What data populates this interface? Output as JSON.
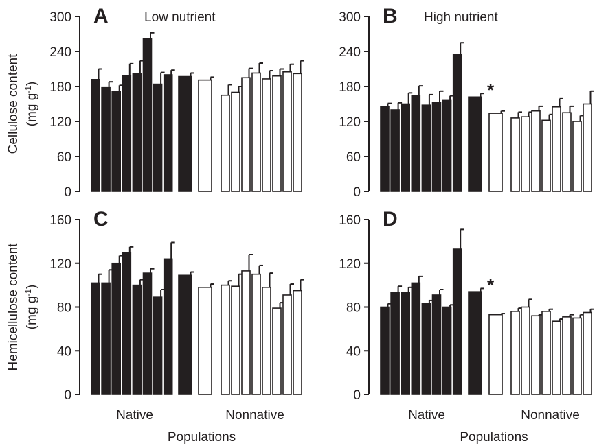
{
  "chart_data": [
    {
      "type": "bar",
      "panel": "A",
      "title": "Low nutrient",
      "ylabel": "Cellulose content",
      "yunit": "(mg g",
      "yunit_sup": "-1",
      "yunit_close": ")",
      "ylim": [
        0,
        300
      ],
      "yticks": [
        "0",
        "60",
        "120",
        "180",
        "240",
        "300"
      ],
      "groups": [
        "Native",
        "Nonnative"
      ],
      "native_values": [
        192,
        178,
        172,
        199,
        202,
        262,
        184,
        200
      ],
      "native_errors": [
        18,
        10,
        10,
        20,
        22,
        10,
        20,
        8
      ],
      "native_mean": 197,
      "native_mean_error": 6,
      "nonnative_mean": 191,
      "nonnative_mean_error": 5,
      "nonnative_values": [
        165,
        170,
        195,
        203,
        193,
        198,
        205,
        202
      ],
      "nonnative_errors": [
        18,
        10,
        16,
        17,
        14,
        12,
        13,
        22
      ],
      "significance": ""
    },
    {
      "type": "bar",
      "panel": "B",
      "title": "High nutrient",
      "ylabel": "",
      "ylim": [
        0,
        300
      ],
      "yticks": [
        "0",
        "60",
        "120",
        "180",
        "240",
        "300"
      ],
      "groups": [
        "Native",
        "Nonnative"
      ],
      "xlabel": "Populations",
      "native_values": [
        145,
        140,
        150,
        164,
        148,
        152,
        156,
        235
      ],
      "native_errors": [
        6,
        12,
        19,
        17,
        18,
        20,
        8,
        20
      ],
      "native_mean": 162,
      "native_mean_error": 6,
      "nonnative_mean": 134,
      "nonnative_mean_error": 4,
      "nonnative_values": [
        126,
        128,
        138,
        122,
        145,
        135,
        120,
        150
      ],
      "nonnative_errors": [
        10,
        8,
        8,
        10,
        14,
        11,
        10,
        22
      ],
      "significance": "*"
    },
    {
      "type": "bar",
      "panel": "C",
      "title": "",
      "ylabel": "Hemicellulose content",
      "yunit": "(mg g",
      "yunit_sup": "-1",
      "yunit_close": ")",
      "ylim": [
        0,
        160
      ],
      "yticks": [
        "0",
        "40",
        "80",
        "120",
        "160"
      ],
      "groups": [
        "Native",
        "Nonnative"
      ],
      "xlabel": "Populations",
      "native_values": [
        102,
        102,
        120,
        130,
        100,
        111,
        89,
        124
      ],
      "native_errors": [
        8,
        12,
        7,
        5,
        5,
        4,
        7,
        15
      ],
      "native_mean": 109,
      "native_mean_error": 3,
      "nonnative_mean": 98,
      "nonnative_mean_error": 3,
      "nonnative_values": [
        100,
        99,
        113,
        110,
        98,
        79,
        91,
        95
      ],
      "nonnative_errors": [
        4,
        11,
        15,
        8,
        13,
        5,
        10,
        10
      ],
      "significance": ""
    },
    {
      "type": "bar",
      "panel": "D",
      "title": "",
      "ylabel": "",
      "ylim": [
        0,
        160
      ],
      "yticks": [
        "0",
        "40",
        "80",
        "120",
        "160"
      ],
      "groups": [
        "Native",
        "Nonnative"
      ],
      "native_values": [
        80,
        93,
        93,
        102,
        83,
        91,
        80,
        133
      ],
      "native_errors": [
        3,
        6,
        5,
        6,
        3,
        5,
        2,
        18
      ],
      "native_mean": 94,
      "native_mean_error": 3,
      "nonnative_mean": 73,
      "nonnative_mean_error": 1,
      "nonnative_values": [
        76,
        80,
        72,
        76,
        67,
        71,
        70,
        75
      ],
      "nonnative_errors": [
        3,
        7,
        1,
        2,
        2,
        2,
        3,
        3
      ],
      "significance": "*"
    }
  ],
  "colors": {
    "native_fill": "#231f20",
    "nonnative_fill": "#ffffff",
    "stroke": "#231f20"
  }
}
